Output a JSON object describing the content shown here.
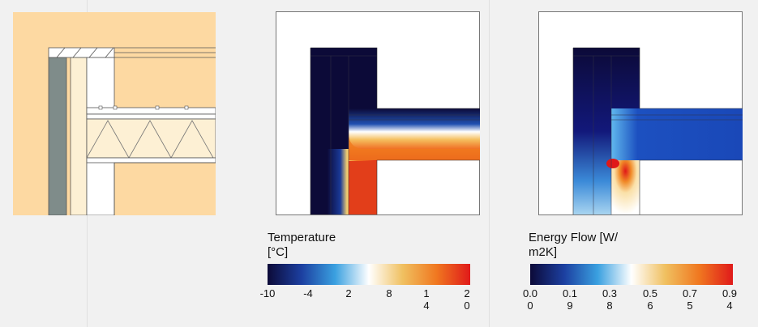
{
  "colors": {
    "page_bg": "#f1f1f1",
    "wall_beige": "#fdd9a2",
    "wall_cream": "#fdf0d4",
    "gray_layer": "#7f8c8a",
    "cold": "#0d0a3a",
    "hot": "#e02020"
  },
  "temperature": {
    "title": "Temperature\n[°C]",
    "colorbar_stops": [
      "#0c0a38",
      "#1c3fa0",
      "#3aa0e0",
      "#ffffff",
      "#f0c060",
      "#f07820",
      "#e01a1a"
    ],
    "ticks": [
      "-10",
      "-4",
      "2",
      "8",
      "1\n4",
      "2\n0"
    ]
  },
  "energy": {
    "title": "Energy Flow [W/\nm2K]",
    "colorbar_stops": [
      "#0c0a38",
      "#1c3fa0",
      "#3aa0e0",
      "#ffffff",
      "#f0c060",
      "#f07820",
      "#e01a1a"
    ],
    "ticks": [
      "0.0\n0",
      "0.1\n9",
      "0.3\n8",
      "0.5\n6",
      "0.7\n5",
      "0.9\n4"
    ]
  }
}
